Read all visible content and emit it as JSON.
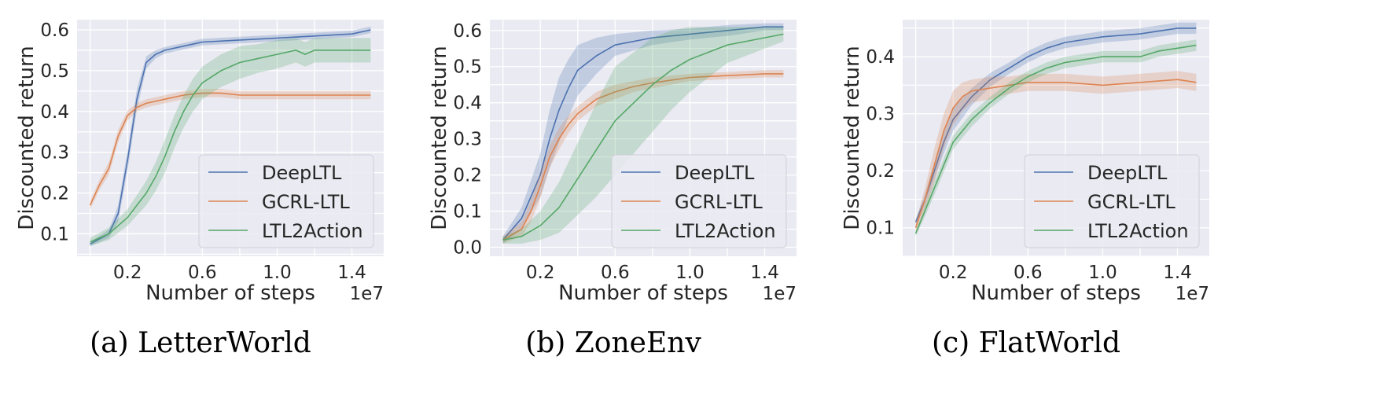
{
  "chart_data": [
    {
      "type": "line",
      "caption": "(a) LetterWorld",
      "xlabel": "Number of steps",
      "ylabel": "Discounted return",
      "x_multiplier": "1e7",
      "xlim": [
        -0.07,
        1.57
      ],
      "ylim": [
        0.045,
        0.625
      ],
      "xticks": [
        0.2,
        0.6,
        1.0,
        1.4
      ],
      "xtick_labels": [
        "0.2",
        "0.6",
        "1.0",
        "1.4"
      ],
      "yticks": [
        0.1,
        0.2,
        0.3,
        0.4,
        0.5,
        0.6
      ],
      "ytick_labels": [
        "0.1",
        "0.2",
        "0.3",
        "0.4",
        "0.5",
        "0.6"
      ],
      "grid": true,
      "legend_position": "lower-right",
      "series": [
        {
          "name": "DeepLTL",
          "color": "#4c72b0",
          "x": [
            0.0,
            0.1,
            0.15,
            0.2,
            0.25,
            0.3,
            0.35,
            0.4,
            0.5,
            0.6,
            0.8,
            1.0,
            1.2,
            1.4,
            1.5
          ],
          "y": [
            0.075,
            0.1,
            0.15,
            0.28,
            0.43,
            0.52,
            0.54,
            0.55,
            0.56,
            0.57,
            0.575,
            0.58,
            0.585,
            0.59,
            0.6
          ],
          "spread": [
            0.005,
            0.01,
            0.02,
            0.025,
            0.025,
            0.015,
            0.01,
            0.008,
            0.008,
            0.008,
            0.008,
            0.008,
            0.008,
            0.008,
            0.008
          ]
        },
        {
          "name": "GCRL-LTL",
          "color": "#dd8452",
          "x": [
            0.0,
            0.05,
            0.1,
            0.15,
            0.2,
            0.25,
            0.3,
            0.4,
            0.5,
            0.6,
            0.7,
            0.8,
            1.0,
            1.2,
            1.4,
            1.5
          ],
          "y": [
            0.17,
            0.22,
            0.26,
            0.34,
            0.39,
            0.41,
            0.42,
            0.43,
            0.44,
            0.445,
            0.445,
            0.44,
            0.44,
            0.44,
            0.44,
            0.44
          ],
          "spread": [
            0.01,
            0.012,
            0.015,
            0.015,
            0.012,
            0.01,
            0.01,
            0.01,
            0.01,
            0.01,
            0.01,
            0.01,
            0.01,
            0.01,
            0.01,
            0.01
          ]
        },
        {
          "name": "LTL2Action",
          "color": "#55a868",
          "x": [
            0.0,
            0.1,
            0.2,
            0.3,
            0.35,
            0.4,
            0.45,
            0.5,
            0.55,
            0.6,
            0.7,
            0.8,
            0.9,
            1.0,
            1.1,
            1.15,
            1.2,
            1.3,
            1.4,
            1.5
          ],
          "y": [
            0.08,
            0.1,
            0.14,
            0.2,
            0.24,
            0.29,
            0.35,
            0.4,
            0.44,
            0.47,
            0.5,
            0.52,
            0.53,
            0.54,
            0.55,
            0.54,
            0.55,
            0.55,
            0.55,
            0.55
          ],
          "spread": [
            0.01,
            0.015,
            0.02,
            0.03,
            0.035,
            0.04,
            0.04,
            0.04,
            0.04,
            0.04,
            0.04,
            0.04,
            0.035,
            0.035,
            0.03,
            0.03,
            0.03,
            0.03,
            0.03,
            0.03
          ]
        }
      ]
    },
    {
      "type": "line",
      "caption": "(b) ZoneEnv",
      "xlabel": "Number of steps",
      "ylabel": "Discounted return",
      "x_multiplier": "1e7",
      "xlim": [
        -0.07,
        1.57
      ],
      "ylim": [
        -0.025,
        0.63
      ],
      "xticks": [
        0.2,
        0.6,
        1.0,
        1.4
      ],
      "xtick_labels": [
        "0.2",
        "0.6",
        "1.0",
        "1.4"
      ],
      "yticks": [
        0.0,
        0.1,
        0.2,
        0.3,
        0.4,
        0.5,
        0.6
      ],
      "ytick_labels": [
        "0.0",
        "0.1",
        "0.2",
        "0.3",
        "0.4",
        "0.5",
        "0.6"
      ],
      "grid": true,
      "legend_position": "lower-right",
      "series": [
        {
          "name": "DeepLTL",
          "color": "#4c72b0",
          "x": [
            0.0,
            0.1,
            0.2,
            0.25,
            0.3,
            0.35,
            0.4,
            0.5,
            0.6,
            0.8,
            1.0,
            1.2,
            1.4,
            1.5
          ],
          "y": [
            0.02,
            0.08,
            0.2,
            0.3,
            0.38,
            0.44,
            0.49,
            0.53,
            0.56,
            0.58,
            0.59,
            0.6,
            0.61,
            0.61
          ],
          "spread": [
            0.01,
            0.03,
            0.06,
            0.08,
            0.09,
            0.08,
            0.07,
            0.05,
            0.03,
            0.02,
            0.015,
            0.015,
            0.01,
            0.01
          ]
        },
        {
          "name": "GCRL-LTL",
          "color": "#dd8452",
          "x": [
            0.0,
            0.1,
            0.15,
            0.2,
            0.25,
            0.3,
            0.35,
            0.4,
            0.5,
            0.6,
            0.7,
            0.8,
            1.0,
            1.2,
            1.4,
            1.5
          ],
          "y": [
            0.02,
            0.05,
            0.1,
            0.17,
            0.25,
            0.3,
            0.34,
            0.37,
            0.41,
            0.43,
            0.445,
            0.455,
            0.47,
            0.475,
            0.48,
            0.48
          ],
          "spread": [
            0.01,
            0.02,
            0.03,
            0.035,
            0.03,
            0.03,
            0.025,
            0.02,
            0.02,
            0.02,
            0.015,
            0.015,
            0.01,
            0.01,
            0.01,
            0.01
          ]
        },
        {
          "name": "LTL2Action",
          "color": "#55a868",
          "x": [
            0.0,
            0.1,
            0.2,
            0.3,
            0.4,
            0.5,
            0.6,
            0.7,
            0.8,
            0.9,
            1.0,
            1.1,
            1.2,
            1.3,
            1.4,
            1.5
          ],
          "y": [
            0.02,
            0.03,
            0.06,
            0.11,
            0.19,
            0.27,
            0.35,
            0.4,
            0.45,
            0.49,
            0.52,
            0.54,
            0.56,
            0.57,
            0.58,
            0.59
          ],
          "spread": [
            0.01,
            0.02,
            0.04,
            0.07,
            0.1,
            0.13,
            0.15,
            0.14,
            0.13,
            0.11,
            0.09,
            0.07,
            0.05,
            0.04,
            0.03,
            0.02
          ]
        }
      ]
    },
    {
      "type": "line",
      "caption": "(c) FlatWorld",
      "xlabel": "Number of steps",
      "ylabel": "Discounted return",
      "x_multiplier": "1e7",
      "xlim": [
        -0.07,
        1.57
      ],
      "ylim": [
        0.05,
        0.465
      ],
      "xticks": [
        0.2,
        0.6,
        1.0,
        1.4
      ],
      "xtick_labels": [
        "0.2",
        "0.6",
        "1.0",
        "1.4"
      ],
      "yticks": [
        0.1,
        0.2,
        0.3,
        0.4
      ],
      "ytick_labels": [
        "0.1",
        "0.2",
        "0.3",
        "0.4"
      ],
      "grid": true,
      "legend_position": "lower-right",
      "series": [
        {
          "name": "DeepLTL",
          "color": "#4c72b0",
          "x": [
            0.0,
            0.05,
            0.1,
            0.15,
            0.2,
            0.3,
            0.4,
            0.5,
            0.6,
            0.7,
            0.8,
            1.0,
            1.2,
            1.4,
            1.5
          ],
          "y": [
            0.11,
            0.15,
            0.2,
            0.25,
            0.29,
            0.33,
            0.36,
            0.38,
            0.4,
            0.415,
            0.425,
            0.435,
            0.44,
            0.45,
            0.45
          ],
          "spread": [
            0.005,
            0.01,
            0.015,
            0.02,
            0.02,
            0.015,
            0.012,
            0.01,
            0.01,
            0.01,
            0.01,
            0.01,
            0.01,
            0.01,
            0.01
          ]
        },
        {
          "name": "GCRL-LTL",
          "color": "#dd8452",
          "x": [
            0.0,
            0.05,
            0.1,
            0.15,
            0.2,
            0.25,
            0.3,
            0.4,
            0.5,
            0.6,
            0.8,
            1.0,
            1.2,
            1.4,
            1.5
          ],
          "y": [
            0.1,
            0.15,
            0.21,
            0.27,
            0.31,
            0.33,
            0.34,
            0.345,
            0.35,
            0.355,
            0.355,
            0.35,
            0.355,
            0.36,
            0.355
          ],
          "spread": [
            0.01,
            0.02,
            0.03,
            0.03,
            0.03,
            0.025,
            0.02,
            0.02,
            0.015,
            0.015,
            0.015,
            0.015,
            0.015,
            0.015,
            0.015
          ]
        },
        {
          "name": "LTL2Action",
          "color": "#55a868",
          "x": [
            0.0,
            0.05,
            0.1,
            0.15,
            0.2,
            0.3,
            0.4,
            0.5,
            0.6,
            0.7,
            0.8,
            0.9,
            1.0,
            1.1,
            1.2,
            1.3,
            1.4,
            1.5
          ],
          "y": [
            0.09,
            0.13,
            0.17,
            0.21,
            0.25,
            0.29,
            0.32,
            0.345,
            0.365,
            0.38,
            0.39,
            0.395,
            0.4,
            0.4,
            0.4,
            0.41,
            0.415,
            0.42
          ],
          "spread": [
            0.005,
            0.01,
            0.012,
            0.012,
            0.012,
            0.012,
            0.01,
            0.01,
            0.01,
            0.01,
            0.01,
            0.01,
            0.01,
            0.01,
            0.01,
            0.01,
            0.01,
            0.01
          ]
        }
      ]
    }
  ]
}
